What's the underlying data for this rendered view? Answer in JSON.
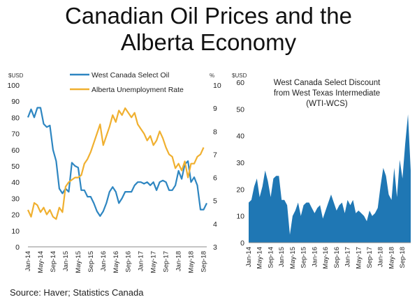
{
  "page": {
    "title_line1": "Canadian Oil Prices and the",
    "title_line2": "Alberta Economy",
    "source": "Source: Haver; Statistics Canada"
  },
  "colors": {
    "wcs": "#2e86c1",
    "unemployment": "#f0b030",
    "discount_area": "#1f77b4"
  },
  "chart_data": [
    {
      "type": "line",
      "left_unit": "$USD",
      "right_unit": "%",
      "ylim_left": [
        0,
        100
      ],
      "ylim_right": [
        3,
        10
      ],
      "yticks_left": [
        0,
        10,
        20,
        30,
        40,
        50,
        60,
        70,
        80,
        90,
        100
      ],
      "yticks_right": [
        3,
        4,
        5,
        6,
        7,
        8,
        9,
        10
      ],
      "x_tick_labels": [
        "Jan-14",
        "May-14",
        "Sep-14",
        "Jan-15",
        "May-15",
        "Sep-15",
        "Jan-16",
        "May-16",
        "Sep-16",
        "Jan-17",
        "May-17",
        "Sep-17",
        "Jan-18",
        "May-18",
        "Sep-18"
      ],
      "legend_placement": "top-center",
      "grid": false,
      "series": [
        {
          "name": "West Canada Select Oil",
          "axis": "left",
          "color": "#2e86c1",
          "values": [
            80,
            85,
            80,
            86,
            86,
            76,
            74,
            75,
            60,
            53,
            36,
            33,
            36,
            34,
            52,
            50,
            49,
            35,
            35,
            31,
            31,
            27,
            22,
            19,
            22,
            27,
            34,
            37,
            34,
            27,
            30,
            34,
            34,
            34,
            38,
            40,
            40,
            39,
            40,
            38,
            40,
            35,
            40,
            41,
            40,
            35,
            35,
            38,
            47,
            42,
            51,
            53,
            40,
            43,
            38,
            23,
            23,
            27
          ]
        },
        {
          "name": "Alberta Unemployment Rate",
          "axis": "right",
          "color": "#f0b030",
          "values": [
            4.6,
            4.3,
            4.9,
            4.8,
            4.5,
            4.7,
            4.4,
            4.6,
            4.3,
            4.2,
            4.7,
            4.5,
            5.6,
            5.8,
            5.9,
            6.0,
            6.0,
            6.1,
            6.6,
            6.8,
            7.1,
            7.5,
            7.9,
            8.3,
            7.4,
            7.8,
            8.2,
            8.7,
            8.4,
            8.9,
            8.7,
            9.0,
            8.8,
            8.6,
            8.8,
            8.3,
            8.1,
            7.9,
            7.6,
            7.8,
            7.4,
            7.6,
            8.0,
            7.7,
            7.3,
            7.0,
            6.9,
            6.4,
            6.6,
            6.3,
            6.7,
            6.0,
            6.6,
            6.6,
            6.9,
            7.0,
            7.3
          ]
        }
      ]
    },
    {
      "type": "area",
      "title_lines": [
        "West Canada Select Discount",
        "from West Texas Intermediate",
        "(WTI-WCS)"
      ],
      "unit": "$USD",
      "ylim": [
        0,
        60
      ],
      "yticks": [
        0,
        10,
        20,
        30,
        40,
        50,
        60
      ],
      "x_tick_labels": [
        "Jan-14",
        "May-14",
        "Sep-14",
        "Jan-15",
        "May-15",
        "Sep-15",
        "Jan-16",
        "May-16",
        "Sep-16",
        "Jan-17",
        "May-17",
        "Sep-17",
        "Jan-18",
        "May-18",
        "Sep-18"
      ],
      "grid": false,
      "series": [
        {
          "name": "WTI-WCS",
          "color": "#1f77b4",
          "values": [
            15,
            16,
            21,
            24,
            17,
            21,
            27,
            23,
            17,
            24,
            25,
            25,
            16,
            16,
            14,
            3,
            10,
            12,
            15,
            10,
            14,
            15,
            15,
            13,
            11,
            13,
            14,
            9,
            12,
            15,
            18,
            15,
            12,
            14,
            15,
            11,
            16,
            14,
            16,
            11,
            12,
            11,
            10,
            8,
            12,
            10,
            11,
            13,
            21,
            28,
            25,
            18,
            16,
            28,
            17,
            31,
            24,
            37,
            48,
            27
          ]
        }
      ]
    }
  ]
}
